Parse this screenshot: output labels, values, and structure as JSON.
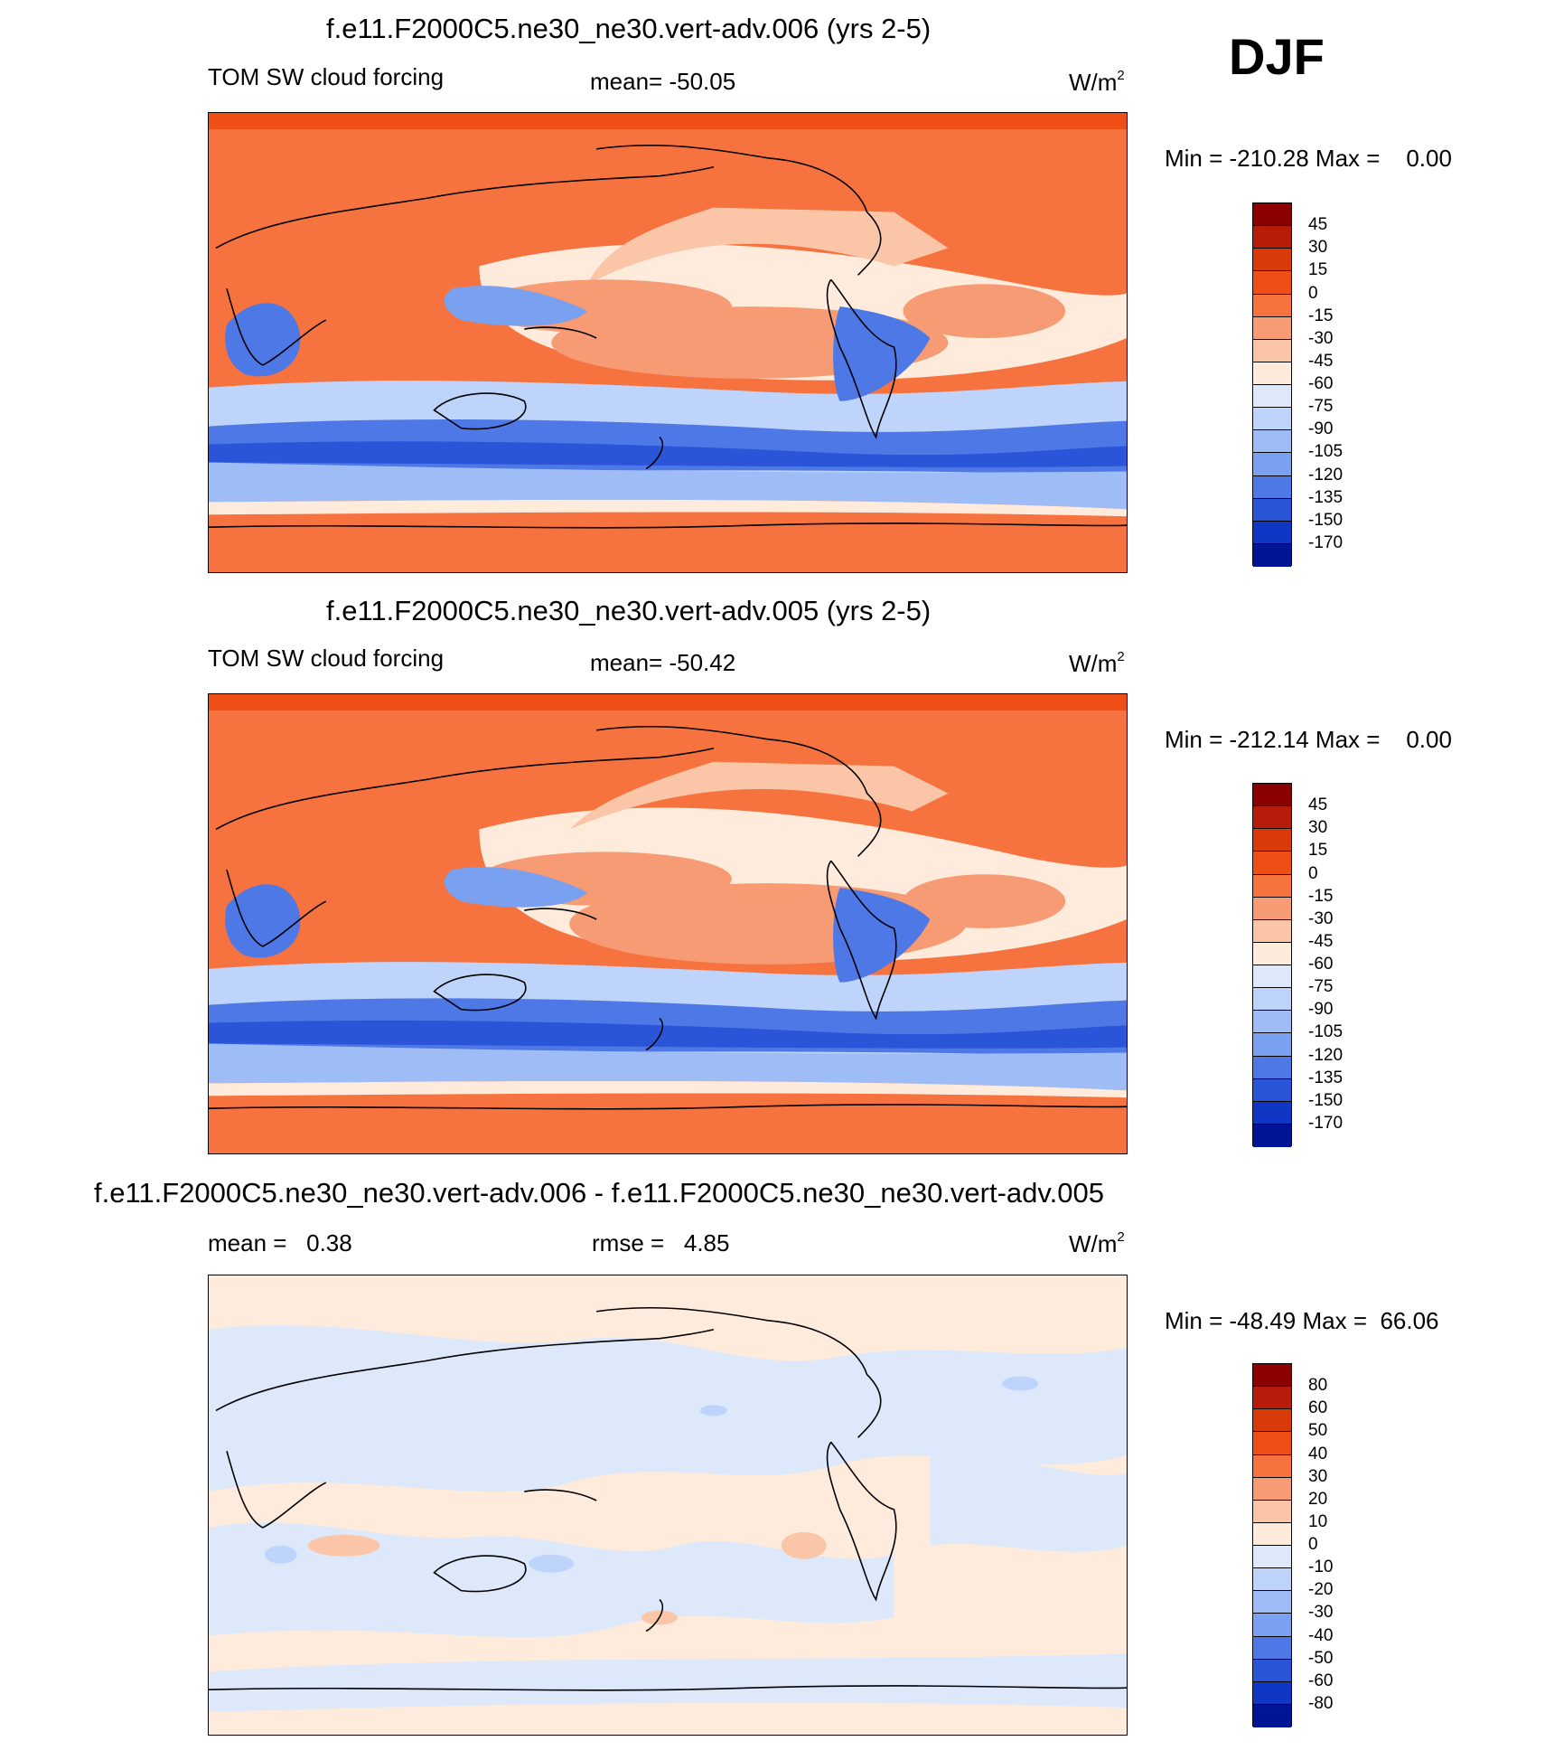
{
  "season": "DJF",
  "panels": [
    {
      "title": "f.e11.F2000C5.ne30_ne30.vert-adv.006 (yrs 2-5)",
      "left_label": "TOM SW cloud forcing",
      "center_label": "mean= -50.05",
      "units_base": "W/m",
      "units_exp": "2",
      "minmax": "Min = -210.28 Max =    0.00",
      "palette": "cf"
    },
    {
      "title": "f.e11.F2000C5.ne30_ne30.vert-adv.005 (yrs 2-5)",
      "left_label": "TOM SW cloud forcing",
      "center_label": "mean= -50.42",
      "units_base": "W/m",
      "units_exp": "2",
      "minmax": "Min = -212.14 Max =    0.00",
      "palette": "cf"
    },
    {
      "title": "f.e11.F2000C5.ne30_ne30.vert-adv.006 - f.e11.F2000C5.ne30_ne30.vert-adv.005",
      "left_label": "mean =   0.38",
      "center_label": "rmse =   4.85",
      "units_base": "W/m",
      "units_exp": "2",
      "minmax": "Min = -48.49 Max =  66.06",
      "palette": "diff"
    }
  ],
  "colorbars": {
    "cf": {
      "levels": [
        "45",
        "30",
        "15",
        "0",
        "-15",
        "-30",
        "-45",
        "-60",
        "-75",
        "-90",
        "-105",
        "-120",
        "-135",
        "-150",
        "-170"
      ],
      "colors": [
        "#8b0000",
        "#b71c0b",
        "#d93a0a",
        "#ef4e16",
        "#f6733f",
        "#f79b74",
        "#fbc6a8",
        "#feebdc",
        "#dde9fb",
        "#bfd4fa",
        "#9ebdf6",
        "#7aa0f0",
        "#4d78e6",
        "#2a55d8",
        "#1037c3",
        "#001596"
      ]
    },
    "diff": {
      "levels": [
        "80",
        "60",
        "50",
        "40",
        "30",
        "20",
        "10",
        "0",
        "-10",
        "-20",
        "-30",
        "-40",
        "-50",
        "-60",
        "-80"
      ],
      "colors": [
        "#8b0000",
        "#b71c0b",
        "#d93a0a",
        "#ef4e16",
        "#f6733f",
        "#f79b74",
        "#fbc6a8",
        "#feebdc",
        "#dde9fb",
        "#bfd4fa",
        "#9ebdf6",
        "#7aa0f0",
        "#4d78e6",
        "#2a55d8",
        "#1037c3",
        "#001596"
      ]
    }
  }
}
